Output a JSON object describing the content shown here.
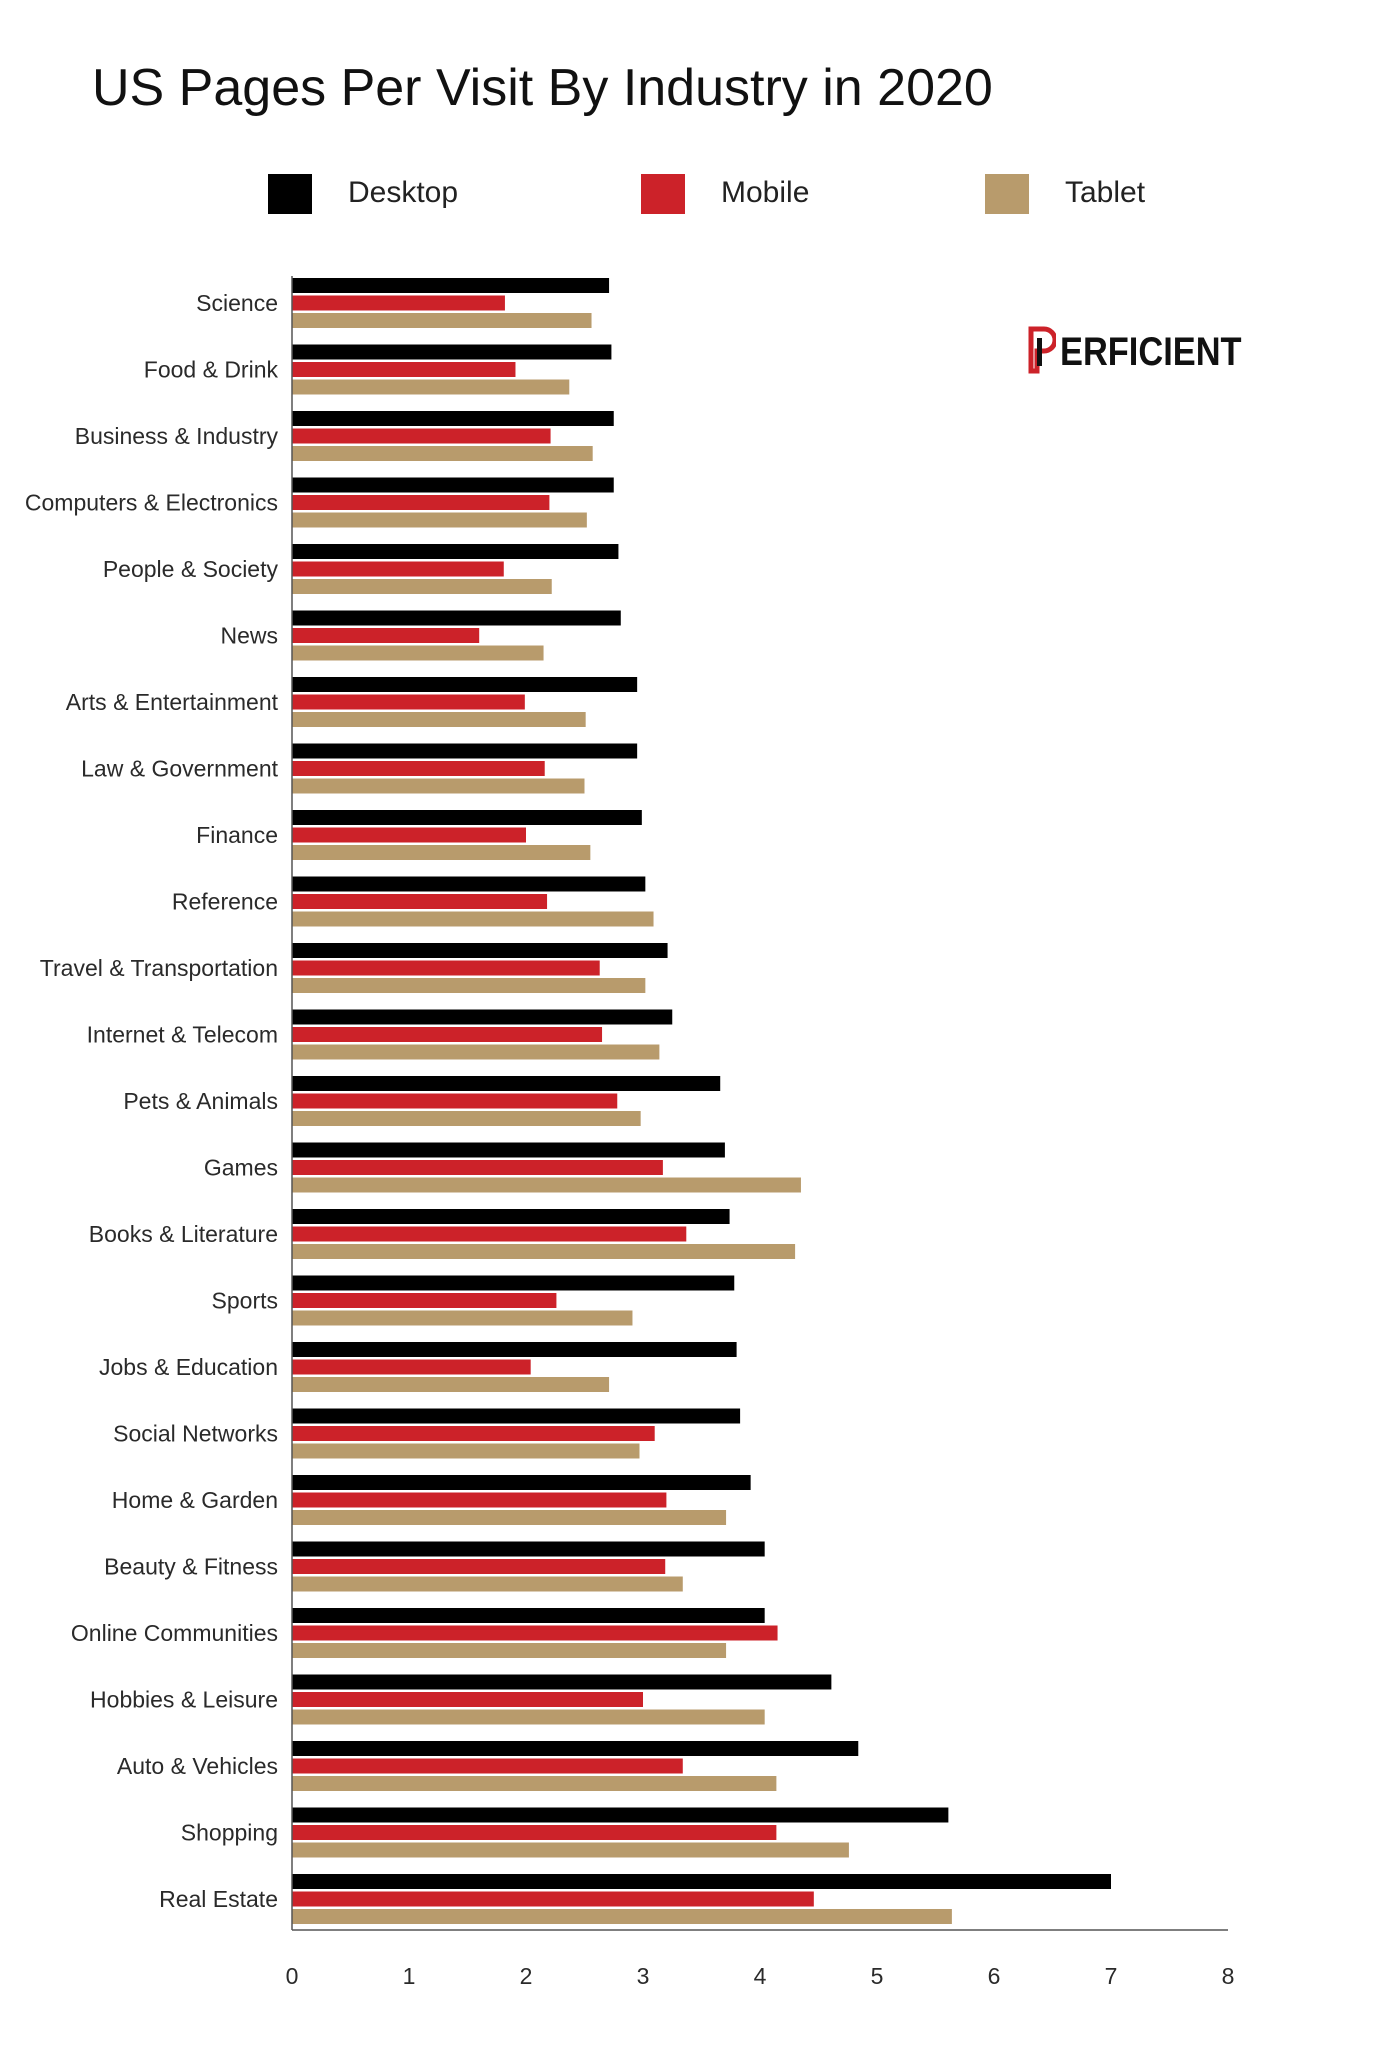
{
  "title": "US Pages Per Visit By Industry in 2020",
  "logo": {
    "text": "ERFICIENT",
    "full_text": "PERFICIENT"
  },
  "colors": {
    "desktop": "#000000",
    "mobile": "#cc2229",
    "tablet": "#b89b6c",
    "axis": "#555555"
  },
  "legend": [
    {
      "name": "Desktop",
      "color": "#000000"
    },
    {
      "name": "Mobile",
      "color": "#cc2229"
    },
    {
      "name": "Tablet",
      "color": "#b89b6c"
    }
  ],
  "chart_data": {
    "type": "bar",
    "orientation": "horizontal",
    "title": "US Pages Per Visit By Industry in 2020",
    "xlim": [
      0,
      8
    ],
    "xticks": [
      0,
      1,
      2,
      3,
      4,
      5,
      6,
      7,
      8
    ],
    "grid": false,
    "legend_position": "top",
    "categories": [
      "Science",
      "Food & Drink",
      "Business & Industry",
      "Computers & Electronics",
      "People & Society",
      "News",
      "Arts & Entertainment",
      "Law & Government",
      "Finance",
      "Reference",
      "Travel & Transportation",
      "Internet & Telecom",
      "Pets & Animals",
      "Games",
      "Books & Literature",
      "Sports",
      "Jobs & Education",
      "Social Networks",
      "Home & Garden",
      "Beauty & Fitness",
      "Online Communities",
      "Hobbies & Leisure",
      "Auto & Vehicles",
      "Shopping",
      "Real Estate"
    ],
    "series": [
      {
        "name": "Desktop",
        "color": "#000000",
        "values": [
          2.71,
          2.73,
          2.75,
          2.75,
          2.79,
          2.81,
          2.95,
          2.95,
          2.99,
          3.02,
          3.21,
          3.25,
          3.66,
          3.7,
          3.74,
          3.78,
          3.8,
          3.83,
          3.92,
          4.04,
          4.04,
          4.61,
          4.84,
          5.61,
          7.0
        ]
      },
      {
        "name": "Mobile",
        "color": "#cc2229",
        "values": [
          1.82,
          1.91,
          2.21,
          2.2,
          1.81,
          1.6,
          1.99,
          2.16,
          2.0,
          2.18,
          2.63,
          2.65,
          2.78,
          3.17,
          3.37,
          2.26,
          2.04,
          3.1,
          3.2,
          3.19,
          4.15,
          3.0,
          3.34,
          4.14,
          4.46
        ]
      },
      {
        "name": "Tablet",
        "color": "#b89b6c",
        "values": [
          2.56,
          2.37,
          2.57,
          2.52,
          2.22,
          2.15,
          2.51,
          2.5,
          2.55,
          3.09,
          3.02,
          3.14,
          2.98,
          4.35,
          4.3,
          2.91,
          2.71,
          2.97,
          3.71,
          3.34,
          3.71,
          4.04,
          4.14,
          4.76,
          5.64
        ]
      }
    ]
  }
}
